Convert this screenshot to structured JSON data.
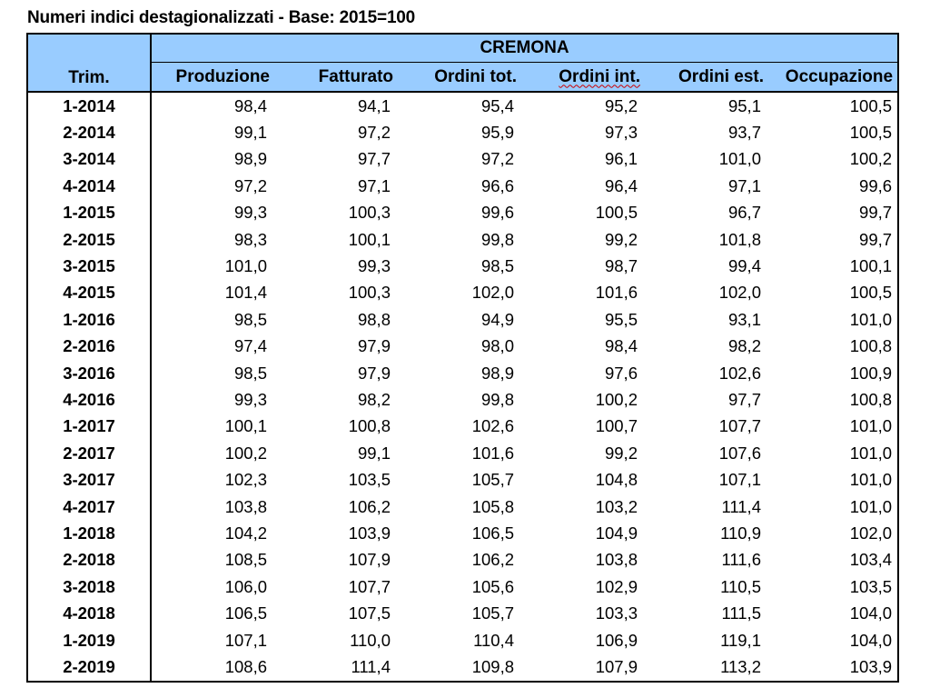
{
  "title": "Numeri indici destagionalizzati - Base: 2015=100",
  "table": {
    "group_header": "CREMONA",
    "row_header": "Trim.",
    "columns": [
      "Produzione",
      "Fatturato",
      "Ordini tot.",
      "Ordini int.",
      "Ordini est.",
      "Occupazione"
    ],
    "rows": [
      {
        "period": "1-2014",
        "values": [
          "98,4",
          "94,1",
          "95,4",
          "95,2",
          "95,1",
          "100,5"
        ]
      },
      {
        "period": "2-2014",
        "values": [
          "99,1",
          "97,2",
          "95,9",
          "97,3",
          "93,7",
          "100,5"
        ]
      },
      {
        "period": "3-2014",
        "values": [
          "98,9",
          "97,7",
          "97,2",
          "96,1",
          "101,0",
          "100,2"
        ]
      },
      {
        "period": "4-2014",
        "values": [
          "97,2",
          "97,1",
          "96,6",
          "96,4",
          "97,1",
          "99,6"
        ]
      },
      {
        "period": "1-2015",
        "values": [
          "99,3",
          "100,3",
          "99,6",
          "100,5",
          "96,7",
          "99,7"
        ]
      },
      {
        "period": "2-2015",
        "values": [
          "98,3",
          "100,1",
          "99,8",
          "99,2",
          "101,8",
          "99,7"
        ]
      },
      {
        "period": "3-2015",
        "values": [
          "101,0",
          "99,3",
          "98,5",
          "98,7",
          "99,4",
          "100,1"
        ]
      },
      {
        "period": "4-2015",
        "values": [
          "101,4",
          "100,3",
          "102,0",
          "101,6",
          "102,0",
          "100,5"
        ]
      },
      {
        "period": "1-2016",
        "values": [
          "98,5",
          "98,8",
          "94,9",
          "95,5",
          "93,1",
          "101,0"
        ]
      },
      {
        "period": "2-2016",
        "values": [
          "97,4",
          "97,9",
          "98,0",
          "98,4",
          "98,2",
          "100,8"
        ]
      },
      {
        "period": "3-2016",
        "values": [
          "98,5",
          "97,9",
          "98,9",
          "97,6",
          "102,6",
          "100,9"
        ]
      },
      {
        "period": "4-2016",
        "values": [
          "99,3",
          "98,2",
          "99,8",
          "100,2",
          "97,7",
          "100,8"
        ]
      },
      {
        "period": "1-2017",
        "values": [
          "100,1",
          "100,8",
          "102,6",
          "100,7",
          "107,7",
          "101,0"
        ]
      },
      {
        "period": "2-2017",
        "values": [
          "100,2",
          "99,1",
          "101,6",
          "99,2",
          "107,6",
          "101,0"
        ]
      },
      {
        "period": "3-2017",
        "values": [
          "102,3",
          "103,5",
          "105,7",
          "104,8",
          "107,1",
          "101,0"
        ]
      },
      {
        "period": "4-2017",
        "values": [
          "103,8",
          "106,2",
          "105,8",
          "103,2",
          "111,4",
          "101,0"
        ]
      },
      {
        "period": "1-2018",
        "values": [
          "104,2",
          "103,9",
          "106,5",
          "104,9",
          "110,9",
          "102,0"
        ]
      },
      {
        "period": "2-2018",
        "values": [
          "108,5",
          "107,9",
          "106,2",
          "103,8",
          "111,6",
          "103,4"
        ]
      },
      {
        "period": "3-2018",
        "values": [
          "106,0",
          "107,7",
          "105,6",
          "102,9",
          "110,5",
          "103,5"
        ]
      },
      {
        "period": "4-2018",
        "values": [
          "106,5",
          "107,5",
          "105,7",
          "103,3",
          "111,5",
          "104,0"
        ]
      },
      {
        "period": "1-2019",
        "values": [
          "107,1",
          "110,0",
          "110,4",
          "106,9",
          "119,1",
          "104,0"
        ]
      },
      {
        "period": "2-2019",
        "values": [
          "108,6",
          "111,4",
          "109,8",
          "107,9",
          "113,2",
          "103,9"
        ]
      }
    ]
  },
  "colors": {
    "header_bg": "#99ccff",
    "border": "#000000",
    "spellcheck_underline": "#cc0000"
  }
}
